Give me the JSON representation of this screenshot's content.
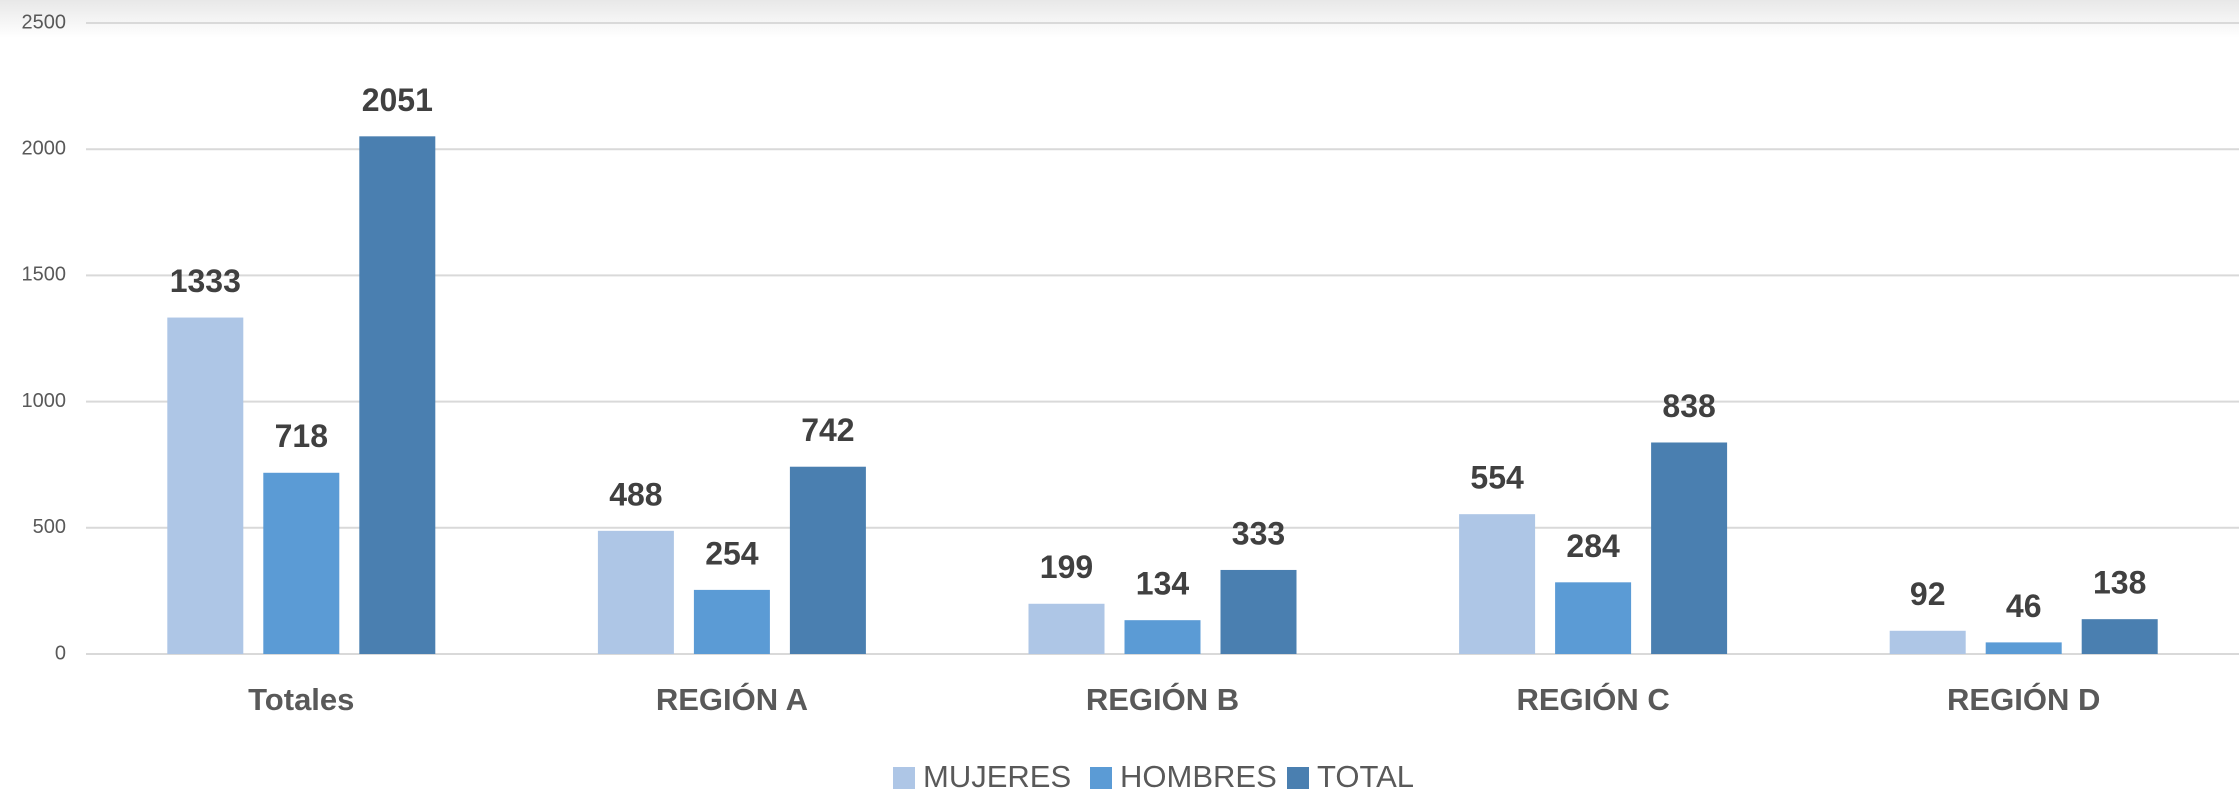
{
  "chart_data": {
    "type": "bar",
    "categories": [
      "Totales",
      "REGIÓN A",
      "REGIÓN B",
      "REGIÓN C",
      "REGIÓN D"
    ],
    "series": [
      {
        "name": "MUJERES",
        "color": "#aec6e6",
        "values": [
          1333,
          488,
          199,
          554,
          92
        ]
      },
      {
        "name": "HOMBRES",
        "color": "#5b9bd5",
        "values": [
          718,
          254,
          134,
          284,
          46
        ]
      },
      {
        "name": "TOTAL",
        "color": "#4a7fb0",
        "values": [
          2051,
          742,
          333,
          838,
          138
        ]
      }
    ],
    "ylim": [
      0,
      2500
    ],
    "yticks": [
      0,
      500,
      1000,
      1500,
      2000,
      2500
    ],
    "grid": true,
    "legend": "bottom"
  }
}
